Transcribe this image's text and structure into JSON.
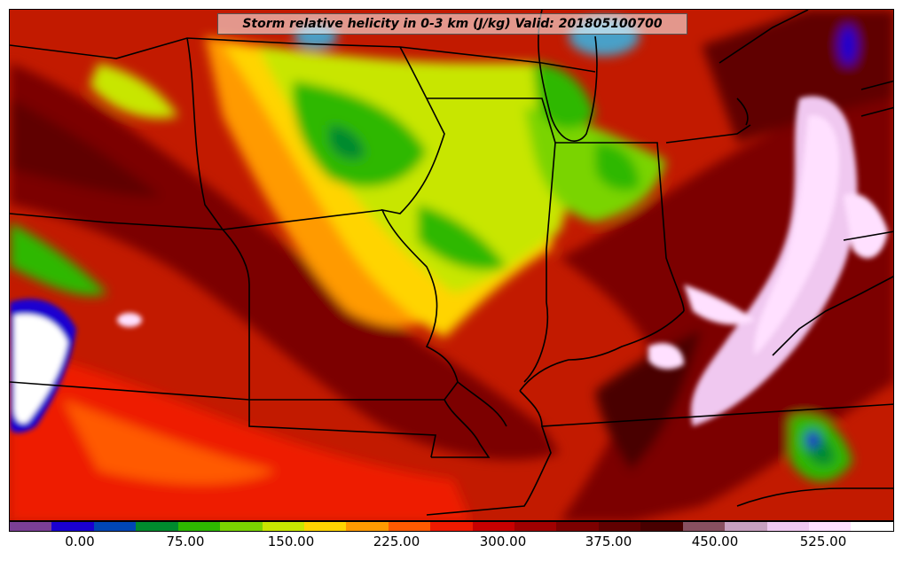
{
  "title": "Storm relative helicity in 0-3 km (J/kg) Valid: 201805100700",
  "colorbar": {
    "colors": [
      "#7b3f96",
      "#1a00d0",
      "#0046b4",
      "#008a2e",
      "#2eb800",
      "#7ad400",
      "#c8e600",
      "#ffd400",
      "#ff9a00",
      "#ff5a00",
      "#ee1a00",
      "#c80000",
      "#a00000",
      "#7c0000",
      "#600000",
      "#480000",
      "#885060",
      "#c8a0c0",
      "#f0c8f0",
      "#ffe0ff",
      "#ffffff"
    ],
    "tick_labels": [
      "0.00",
      "75.00",
      "150.00",
      "225.00",
      "300.00",
      "375.00",
      "450.00",
      "525.00"
    ]
  }
}
